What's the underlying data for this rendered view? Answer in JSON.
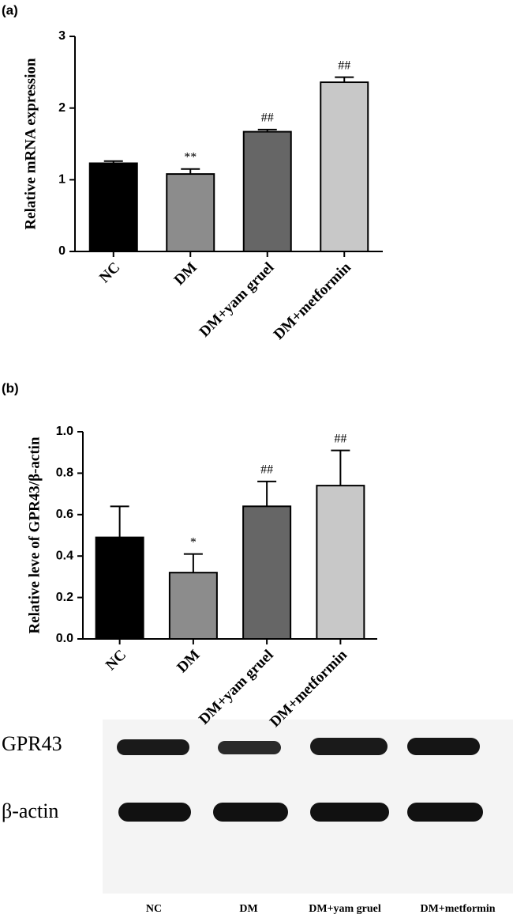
{
  "chart_data": [
    {
      "type": "bar",
      "label": "(a)",
      "ylabel": "Relative mRNA expression",
      "categories": [
        "NC",
        "DM",
        "DM+yam gruel",
        "DM+metformin"
      ],
      "values": [
        1.23,
        1.08,
        1.67,
        2.36
      ],
      "errors": [
        0.03,
        0.07,
        0.03,
        0.07
      ],
      "annotations": [
        null,
        "**",
        "##",
        "##"
      ],
      "colors": [
        "#000000",
        "#8c8c8c",
        "#666666",
        "#c8c8c8"
      ],
      "ylim": [
        0,
        3
      ],
      "yticks": [
        0,
        1,
        2,
        3
      ]
    },
    {
      "type": "bar",
      "label": "(b)",
      "ylabel": "Relative leve of GPR43/β-actin",
      "categories": [
        "NC",
        "DM",
        "DM+yam gruel",
        "DM+metformin"
      ],
      "values": [
        0.49,
        0.32,
        0.64,
        0.74
      ],
      "errors": [
        0.15,
        0.09,
        0.12,
        0.17
      ],
      "annotations": [
        null,
        "*",
        "##",
        "##"
      ],
      "colors": [
        "#000000",
        "#8c8c8c",
        "#666666",
        "#c8c8c8"
      ],
      "ylim": [
        0,
        1
      ],
      "yticks": [
        {
          "value": 0,
          "label": "0.0"
        },
        0.2,
        0.4,
        0.6,
        0.8,
        {
          "value": 1,
          "label": "1.0"
        }
      ]
    }
  ],
  "blot": {
    "rows": [
      "GPR43",
      "β-actin"
    ],
    "lanes": [
      "NC",
      "DM",
      "DM+yam gruel",
      "DM+metformin"
    ]
  }
}
